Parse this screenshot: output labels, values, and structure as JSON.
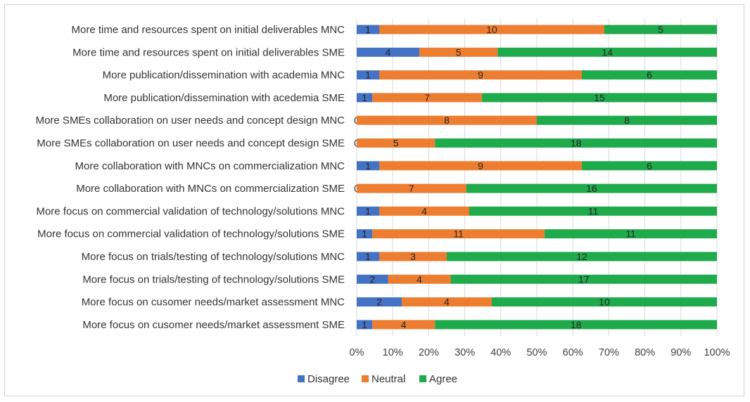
{
  "chart_data": {
    "type": "bar",
    "orientation": "horizontal",
    "stacked": true,
    "percent_stacked": true,
    "title": "",
    "xlabel": "",
    "ylabel": "",
    "xlim": [
      0,
      100
    ],
    "x_ticks": [
      "0%",
      "10%",
      "20%",
      "30%",
      "40%",
      "50%",
      "60%",
      "70%",
      "80%",
      "90%",
      "100%"
    ],
    "grid": true,
    "legend_position": "bottom",
    "categories": [
      "More time and resources spent on initial deliverables MNC",
      "More time and resources spent on initial deliverables SME",
      "More publication/dissemination with academia MNC",
      "More publication/dissemination with acedemia SME",
      "More SMEs collaboration on user needs and concept design MNC",
      "More SMEs collaboration on user needs and concept design SME",
      "More collaboration with MNCs on commercialization  MNC",
      "More collaboration with MNCs on commercialization SME",
      "More focus on commercial validation of technology/solutions MNC",
      "More focus on commercial validation of technology/solutions SME",
      "More focus on trials/testing of technology/solutions MNC",
      "More focus on trials/testing of technology/solutions SME",
      "More focus on cusomer needs/market assessment MNC",
      "More focus on cusomer needs/market assessment SME"
    ],
    "series": [
      {
        "name": "Disagree",
        "color": "#4472c4",
        "values": [
          1,
          4,
          1,
          1,
          0,
          0,
          1,
          0,
          1,
          1,
          1,
          2,
          2,
          1
        ]
      },
      {
        "name": "Neutral",
        "color": "#ed7d31",
        "values": [
          10,
          5,
          9,
          7,
          8,
          5,
          9,
          7,
          4,
          11,
          3,
          4,
          4,
          4
        ]
      },
      {
        "name": "Agree",
        "color": "#1faa4b",
        "values": [
          5,
          14,
          6,
          15,
          8,
          18,
          6,
          16,
          11,
          11,
          12,
          17,
          10,
          18
        ]
      }
    ]
  }
}
